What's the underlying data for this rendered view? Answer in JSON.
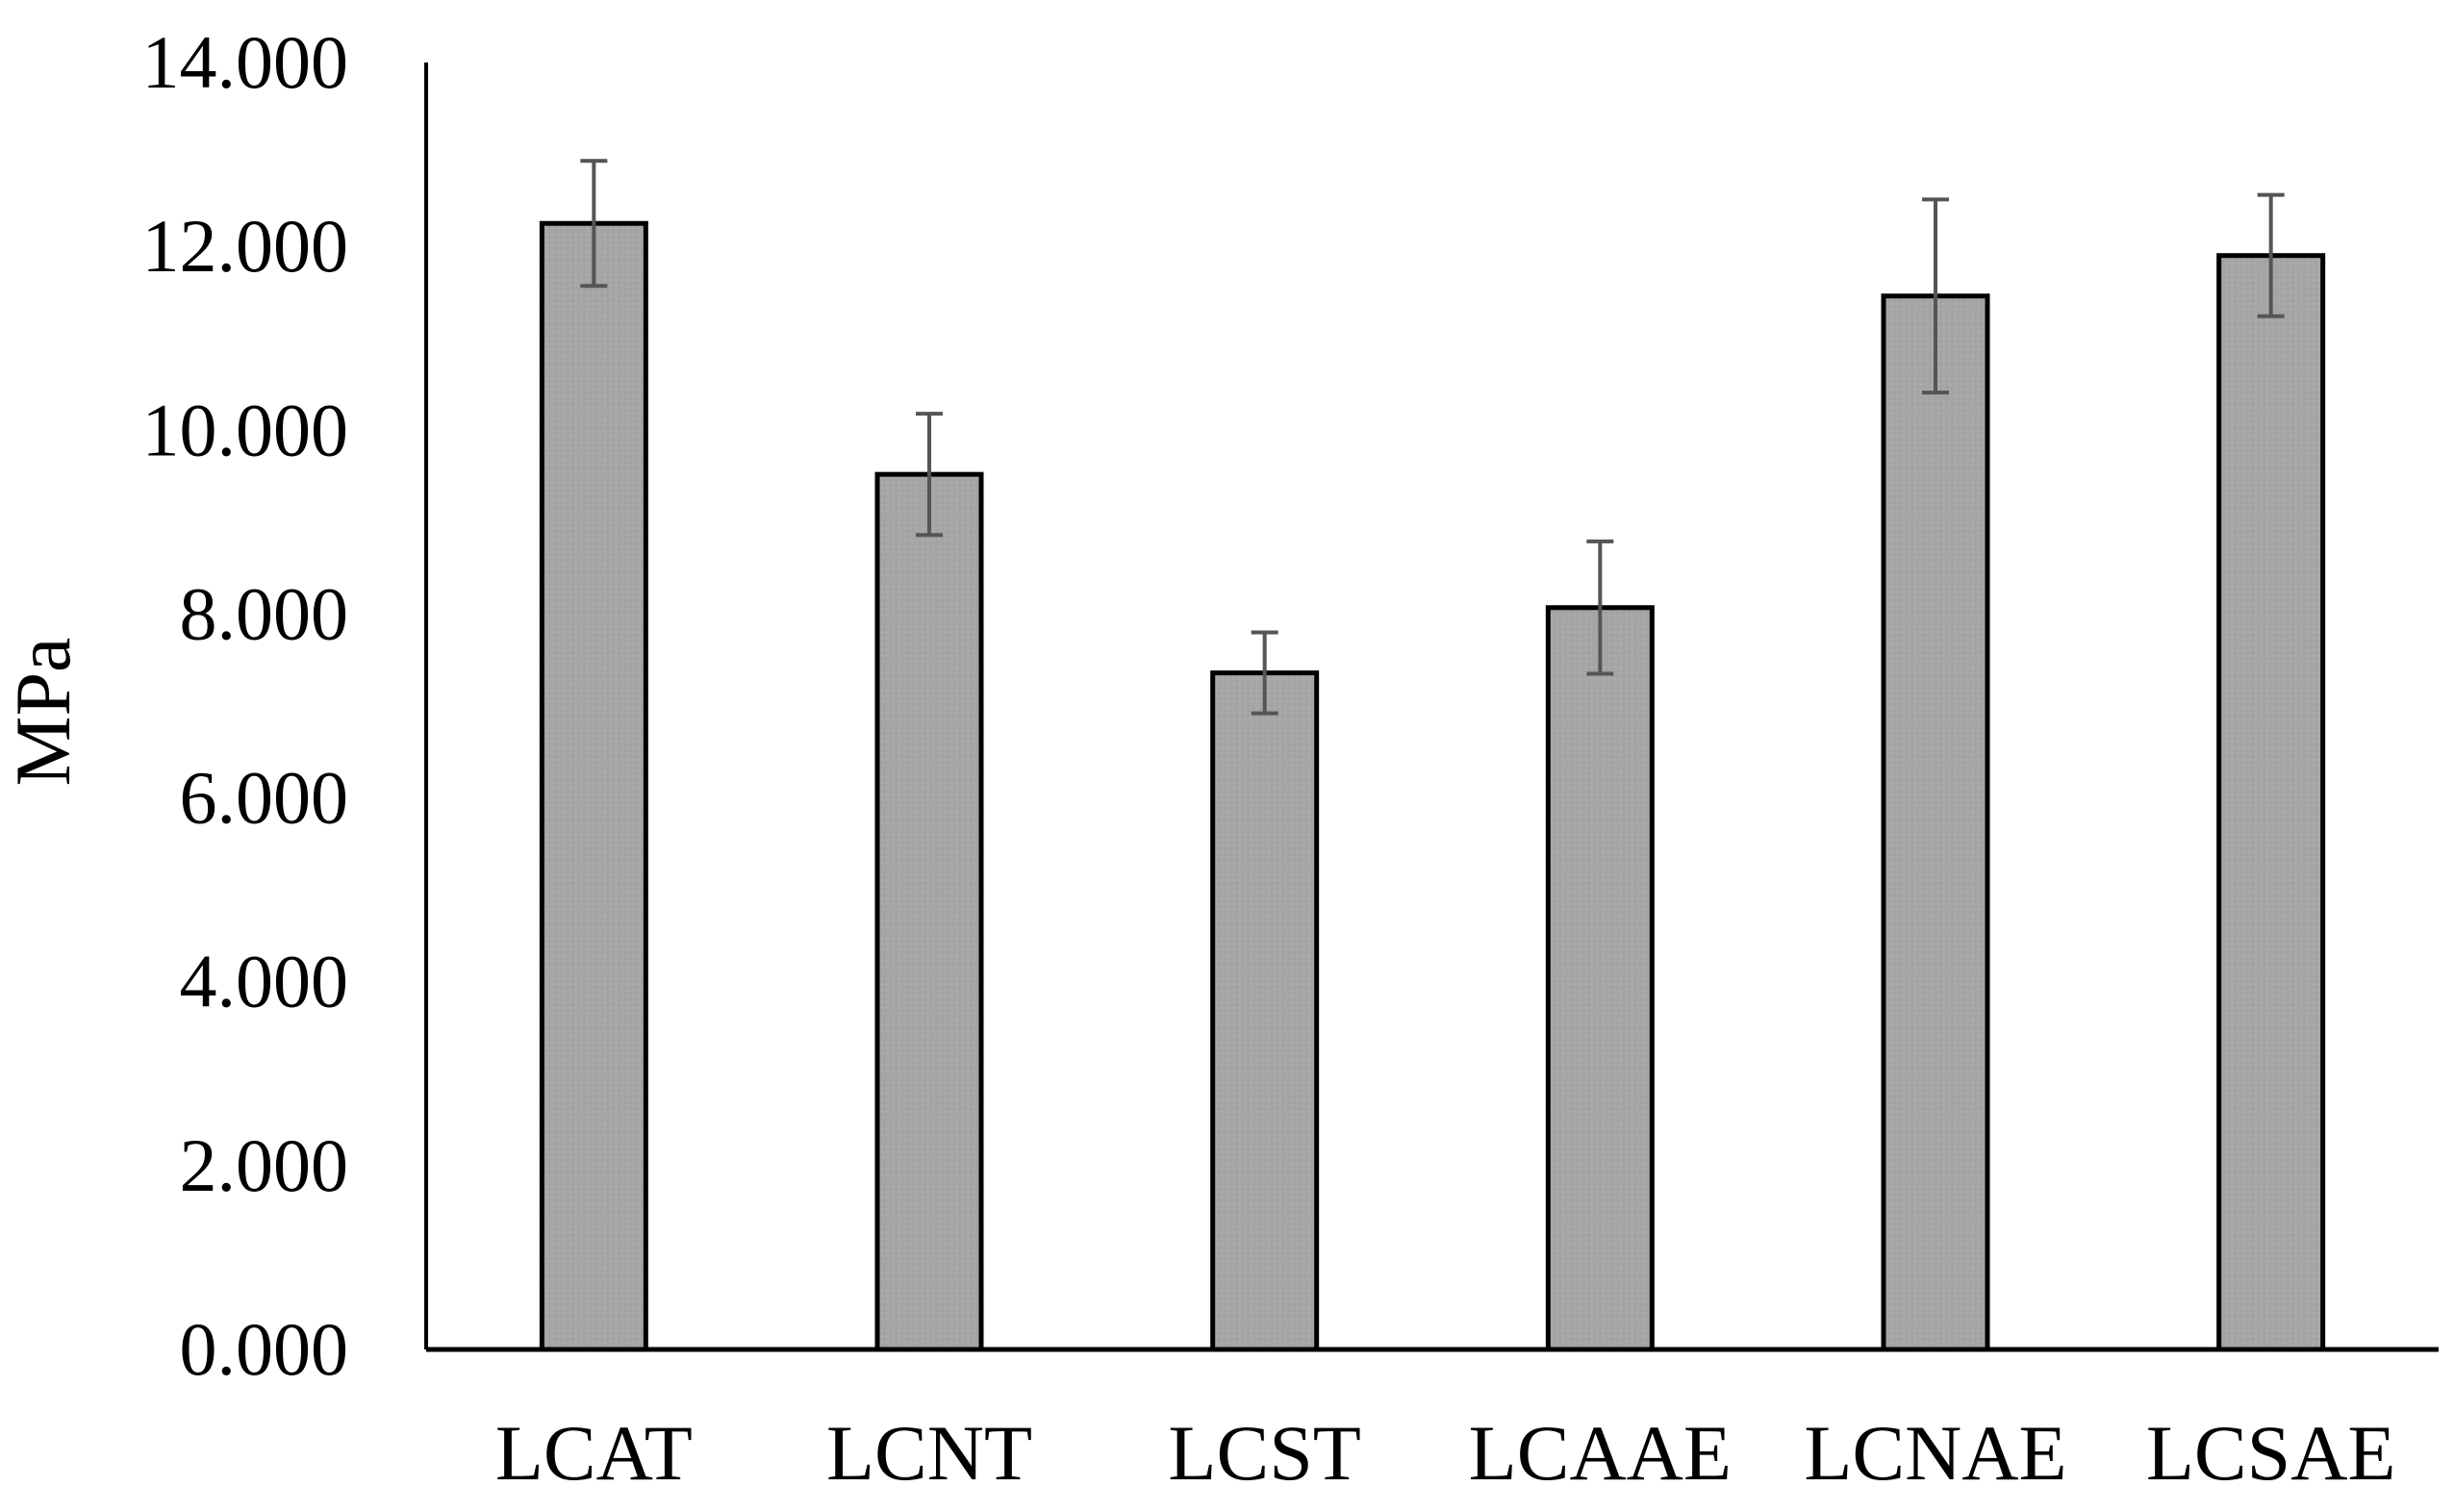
{
  "chart_data": {
    "type": "bar",
    "title": "",
    "xlabel": "",
    "ylabel": "MPa",
    "ylim": [
      0,
      14
    ],
    "yticks": [
      0,
      2,
      4,
      6,
      8,
      10,
      12,
      14
    ],
    "ytick_labels": [
      "0.000",
      "2.000",
      "4.000",
      "6.000",
      "8.000",
      "10.000",
      "12.000",
      "14.000"
    ],
    "categories": [
      "LCAT",
      "LCNT",
      "LCST",
      "LCAAE",
      "LCNAE",
      "LCSAE"
    ],
    "values": [
      12.25,
      9.52,
      7.36,
      8.07,
      11.46,
      11.9
    ],
    "error": [
      0.68,
      0.66,
      0.44,
      0.72,
      1.05,
      0.66
    ],
    "grid": false,
    "legend": "none",
    "colors": {
      "bar_fill": "#a6a6a6",
      "bar_stroke": "#000000",
      "error_bar": "#555555",
      "axis": "#000000"
    }
  }
}
